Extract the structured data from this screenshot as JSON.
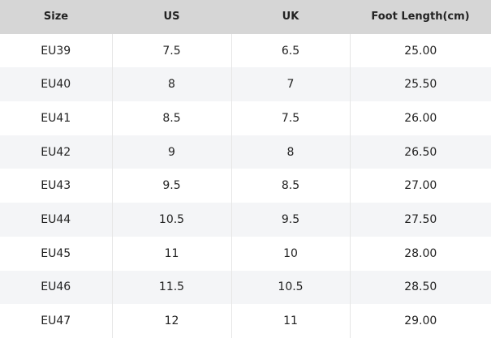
{
  "table": {
    "header": [
      "Size",
      "US",
      "UK",
      "Foot Length(cm)"
    ],
    "rows": [
      [
        "EU39",
        "7.5",
        "6.5",
        "25.00"
      ],
      [
        "EU40",
        "8",
        "7",
        "25.50"
      ],
      [
        "EU41",
        "8.5",
        "7.5",
        "26.00"
      ],
      [
        "EU42",
        "9",
        "8",
        "26.50"
      ],
      [
        "EU43",
        "9.5",
        "8.5",
        "27.00"
      ],
      [
        "EU44",
        "10.5",
        "9.5",
        "27.50"
      ],
      [
        "EU45",
        "11",
        "10",
        "28.00"
      ],
      [
        "EU46",
        "11.5",
        "10.5",
        "28.50"
      ],
      [
        "EU47",
        "12",
        "11",
        "29.00"
      ]
    ]
  }
}
